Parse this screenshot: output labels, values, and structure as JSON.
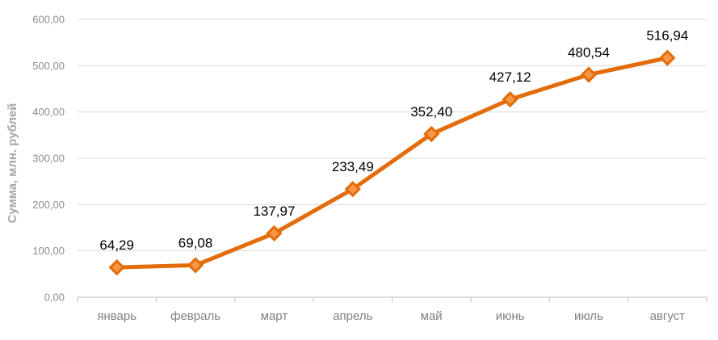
{
  "chart_data": {
    "type": "line",
    "categories": [
      "январь",
      "февраль",
      "март",
      "апрель",
      "май",
      "июнь",
      "июль",
      "август"
    ],
    "series": [
      {
        "values": [
          64.29,
          69.08,
          137.97,
          233.49,
          352.4,
          427.12,
          480.54,
          516.94
        ],
        "labels": [
          "64,29",
          "69,08",
          "137,97",
          "233,49",
          "352,40",
          "427,12",
          "480,54",
          "516,94"
        ]
      }
    ],
    "xlabel": "",
    "ylabel": "Сумма, млн. рублей",
    "ylim": [
      0,
      600
    ],
    "yticks": [
      0,
      100,
      200,
      300,
      400,
      500,
      600
    ],
    "ytick_labels": [
      "0,00",
      "100,00",
      "200,00",
      "300,00",
      "400,00",
      "500,00",
      "600,00"
    ],
    "grid": true,
    "legend": "none",
    "line_color": "#e36c0a",
    "marker": "diamond",
    "marker_fill": "#f79646"
  }
}
